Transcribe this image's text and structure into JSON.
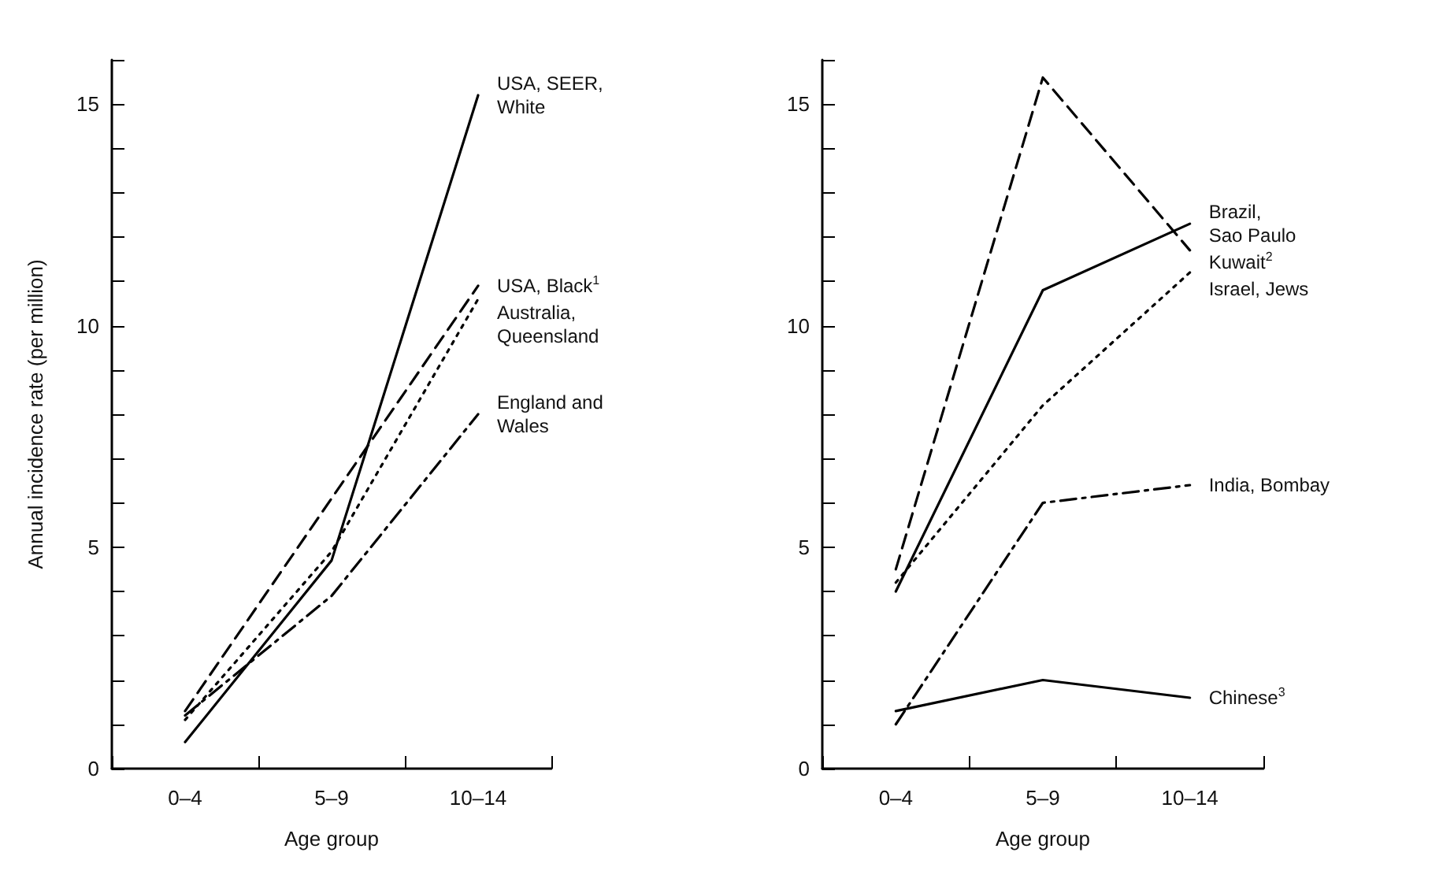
{
  "chart_data": [
    {
      "type": "line",
      "xlabel": "Age group",
      "ylabel": "Annual incidence rate (per million)",
      "categories": [
        "0–4",
        "5–9",
        "10–14"
      ],
      "ylim": [
        0,
        16
      ],
      "yticks": [
        0,
        {
          "value": 1,
          "label": null
        },
        {
          "value": 2,
          "label": null
        },
        {
          "value": 3,
          "label": null
        },
        {
          "value": 4,
          "label": null
        },
        5,
        {
          "value": 6,
          "label": null
        },
        {
          "value": 7,
          "label": null
        },
        {
          "value": 8,
          "label": null
        },
        {
          "value": 9,
          "label": null
        },
        10,
        {
          "value": 11,
          "label": null
        },
        {
          "value": 12,
          "label": null
        },
        {
          "value": 13,
          "label": null
        },
        {
          "value": 14,
          "label": null
        },
        15,
        {
          "value": 16,
          "label": null
        }
      ],
      "grid": false,
      "legend": false,
      "marker": "none",
      "series": [
        {
          "name": "USA, SEER, White",
          "color": "#000000",
          "line_style": "solid",
          "values": [
            0.6,
            4.7,
            15.2
          ]
        },
        {
          "name": "USA, Black$^{1}$",
          "color": "#000000",
          "line_style": "dashed",
          "values": [
            1.3,
            6.1,
            10.9
          ]
        },
        {
          "name": "Australia, Queensland",
          "color": "#000000",
          "line_style": "dotted",
          "values": [
            1.1,
            4.9,
            10.6
          ]
        },
        {
          "name": "England and Wales",
          "color": "#000000",
          "line_style": "dashdot",
          "values": [
            1.2,
            3.9,
            8.0
          ]
        }
      ]
    },
    {
      "type": "line",
      "xlabel": "Age group",
      "categories": [
        "0–4",
        "5–9",
        "10–14"
      ],
      "ylim": [
        0,
        16
      ],
      "yticks": [
        0,
        {
          "value": 1,
          "label": null
        },
        {
          "value": 2,
          "label": null
        },
        {
          "value": 3,
          "label": null
        },
        {
          "value": 4,
          "label": null
        },
        5,
        {
          "value": 6,
          "label": null
        },
        {
          "value": 7,
          "label": null
        },
        {
          "value": 8,
          "label": null
        },
        {
          "value": 9,
          "label": null
        },
        10,
        {
          "value": 11,
          "label": null
        },
        {
          "value": 12,
          "label": null
        },
        {
          "value": 13,
          "label": null
        },
        {
          "value": 14,
          "label": null
        },
        15,
        {
          "value": 16,
          "label": null
        }
      ],
      "grid": false,
      "legend": false,
      "marker": "none",
      "series": [
        {
          "name": "Brazil, Sao Paulo",
          "color": "#000000",
          "line_style": "solid",
          "values": [
            4.0,
            10.8,
            12.3
          ]
        },
        {
          "name": "Kuwait$^{2}$",
          "color": "#000000",
          "line_style": "dashed",
          "values": [
            4.5,
            15.6,
            11.7
          ]
        },
        {
          "name": "Israel, Jews",
          "color": "#000000",
          "line_style": "dotted",
          "values": [
            4.2,
            8.2,
            11.2
          ]
        },
        {
          "name": "India, Bombay",
          "color": "#000000",
          "line_style": "dashdot",
          "values": [
            1.0,
            6.0,
            6.4
          ]
        },
        {
          "name": "Chinese$^{3}$",
          "color": "#000000",
          "line_style": "solid",
          "values": [
            1.3,
            2.0,
            1.6
          ]
        }
      ]
    }
  ]
}
